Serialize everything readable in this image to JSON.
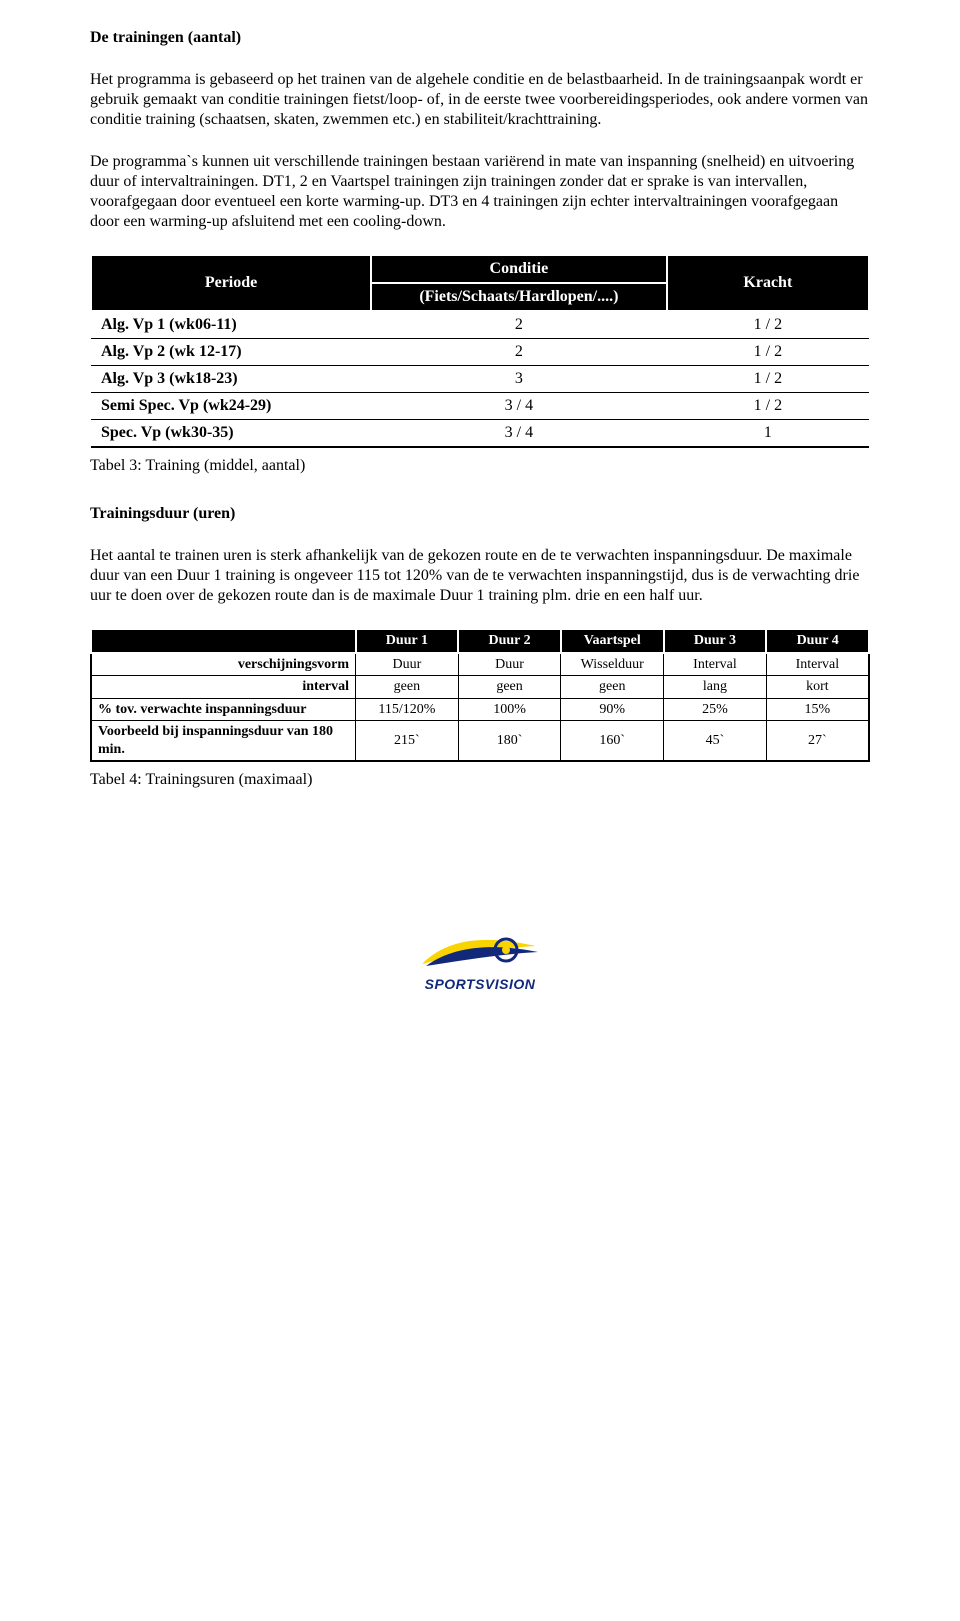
{
  "colors": {
    "table_header_bg": "#000000",
    "table_header_text": "#ffffff",
    "table_border": "#000000",
    "text": "#000000",
    "logo_blue": "#12297a",
    "logo_yellow": "#f9d400"
  },
  "section1": {
    "title": "De trainingen (aantal)",
    "p1": "Het programma is gebaseerd op het trainen van de algehele conditie en de belastbaarheid. In de trainingsaanpak wordt er gebruik gemaakt van conditie trainingen fietst/loop- of, in de eerste twee voorbereidingsperiodes, ook andere vormen van conditie training (schaatsen, skaten, zwemmen etc.) en stabiliteit/krachttraining.",
    "p2": "De programma`s kunnen uit verschillende trainingen bestaan variërend in mate van inspanning (snelheid) en uitvoering duur of intervaltrainingen.  DT1, 2 en Vaartspel trainingen zijn trainingen zonder dat er sprake is van intervallen, voorafgegaan door eventueel een korte warming-up. DT3 en 4 trainingen zijn echter intervaltrainingen voorafgegaan door een warming-up  afsluitend met een cooling-down."
  },
  "table3": {
    "headers": {
      "periode": "Periode",
      "conditie": "Conditie",
      "conditie_sub": "(Fiets/Schaats/Hardlopen/....)",
      "kracht": "Kracht"
    },
    "col_widths": [
      "36%",
      "38%",
      "26%"
    ],
    "rows": [
      {
        "label": "Alg. Vp 1 (wk06-11)",
        "conditie": "2",
        "kracht": "1 / 2"
      },
      {
        "label": "Alg. Vp 2 (wk 12-17)",
        "conditie": "2",
        "kracht": "1 / 2"
      },
      {
        "label": "Alg. Vp 3 (wk18-23)",
        "conditie": "3",
        "kracht": "1 / 2"
      },
      {
        "label": "Semi Spec. Vp (wk24-29)",
        "conditie": "3 / 4",
        "kracht": "1 / 2"
      },
      {
        "label": "Spec. Vp (wk30-35)",
        "conditie": "3 / 4",
        "kracht": "1"
      }
    ],
    "caption": "Tabel 3: Training (middel, aantal)"
  },
  "section2": {
    "title": "Trainingsduur (uren)",
    "p1": "Het aantal te trainen uren is sterk afhankelijk van de gekozen route en de te verwachten inspanningsduur. De maximale duur van een Duur 1 training is ongeveer 115 tot 120% van de te verwachten inspanningstijd, dus is de verwachting drie uur te doen over de gekozen route dan is de maximale Duur 1 training plm. drie en een half uur."
  },
  "table4": {
    "col_widths": [
      "34%",
      "13.2%",
      "13.2%",
      "13.2%",
      "13.2%",
      "13.2%"
    ],
    "headers": [
      "",
      "Duur 1",
      "Duur 2",
      "Vaartspel",
      "Duur 3",
      "Duur 4"
    ],
    "rows": [
      {
        "label": "verschijningsvorm",
        "bold": true,
        "cells": [
          "Duur",
          "Duur",
          "Wisselduur",
          "Interval",
          "Interval"
        ]
      },
      {
        "label": "interval",
        "bold": true,
        "cells": [
          "geen",
          "geen",
          "geen",
          "lang",
          "kort"
        ]
      },
      {
        "label": "% tov. verwachte inspanningsduur",
        "bold": true,
        "left": true,
        "cells": [
          "115/120%",
          "100%",
          "90%",
          "25%",
          "15%"
        ]
      },
      {
        "label": "Voorbeeld bij inspanningsduur van 180 min.",
        "bold": true,
        "left": true,
        "cells": [
          "215`",
          "180`",
          "160`",
          "45`",
          "27`"
        ]
      }
    ],
    "caption": "Tabel 4: Trainingsuren (maximaal)"
  },
  "logo": {
    "brand": "SPORTSVISION"
  }
}
